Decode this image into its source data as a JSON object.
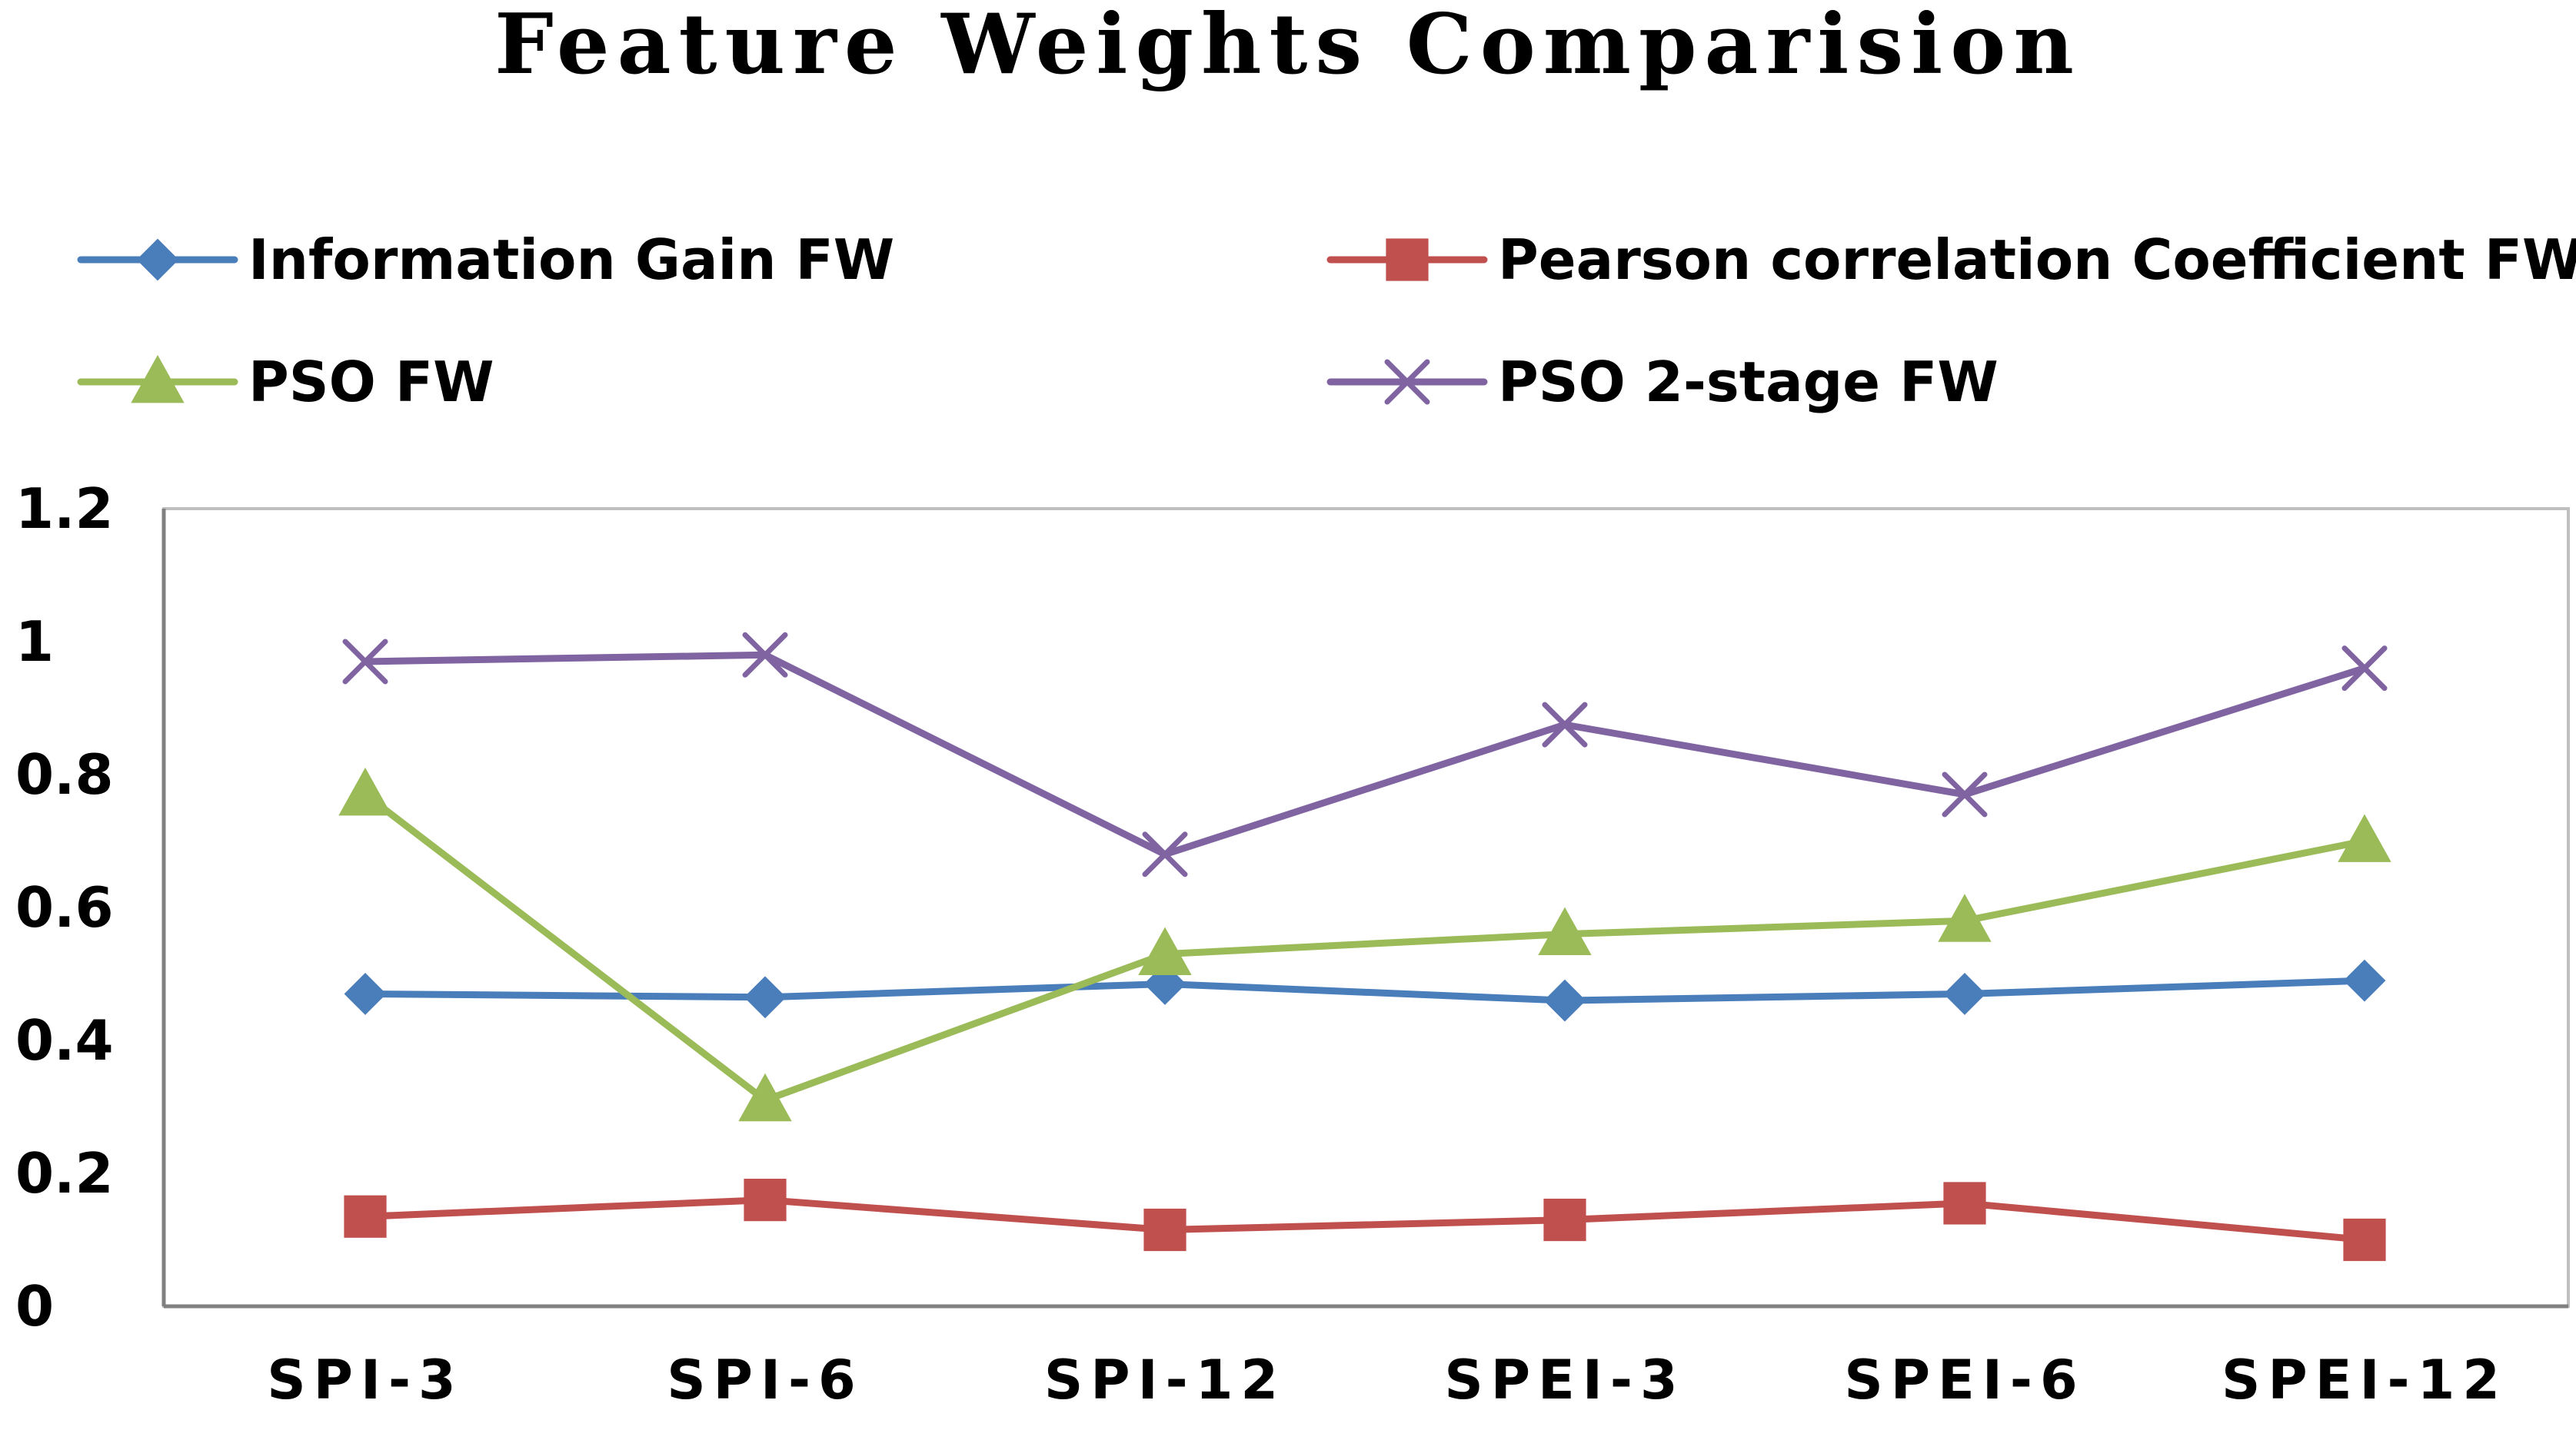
{
  "chart_data": {
    "type": "line",
    "title": "Feature Weights Comparision",
    "xlabel": "",
    "ylabel": "",
    "categories": [
      "SPI-3",
      "SPI-6",
      "SPI-12",
      "SPEI-3",
      "SPEI-6",
      "SPEI-12"
    ],
    "ylim": [
      0,
      1.2
    ],
    "yticks": [
      "0",
      "0.2",
      "0.4",
      "0.6",
      "0.8",
      "1",
      "1.2"
    ],
    "legend_position": "top",
    "grid": false,
    "series": [
      {
        "name": "Information Gain FW",
        "color": "#4A7EBB",
        "marker": "diamond",
        "values": [
          0.47,
          0.465,
          0.485,
          0.46,
          0.47,
          0.49
        ]
      },
      {
        "name": "Pearson correlation Coefficient FW",
        "color": "#C0504D",
        "marker": "square",
        "values": [
          0.135,
          0.16,
          0.115,
          0.13,
          0.155,
          0.1
        ]
      },
      {
        "name": "PSO FW",
        "color": "#9BBB59",
        "marker": "triangle",
        "values": [
          0.77,
          0.31,
          0.53,
          0.56,
          0.58,
          0.7
        ]
      },
      {
        "name": "PSO 2-stage  FW",
        "color": "#8064A2",
        "marker": "x",
        "values": [
          0.97,
          0.98,
          0.68,
          0.875,
          0.77,
          0.96
        ]
      }
    ]
  }
}
